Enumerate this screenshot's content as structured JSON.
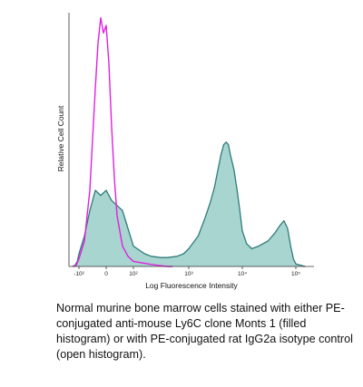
{
  "chart_data": {
    "type": "area",
    "xlabel": "Log Fluorescence Intensity",
    "ylabel": "Relative Cell Count",
    "x_scale": "biexponential",
    "xticks": [
      {
        "value": -100,
        "label": "-10²"
      },
      {
        "value": 0,
        "label": "0"
      },
      {
        "value": 100,
        "label": "10²"
      },
      {
        "value": 1000,
        "label": "10³"
      },
      {
        "value": 10000,
        "label": "10⁴"
      },
      {
        "value": 100000,
        "label": "10⁵"
      }
    ],
    "ylim": [
      0,
      100
    ],
    "grid": false,
    "legend": "none",
    "series": [
      {
        "style": "filled",
        "color": "#2e7b7b",
        "fill": "#a8d5cf",
        "x": [
          -215,
          -170,
          -130,
          -100,
          -80,
          -60,
          -40,
          -20,
          0,
          20,
          40,
          60,
          80,
          100,
          150,
          200,
          300,
          400,
          600,
          800,
          1000,
          1500,
          2000,
          2500,
          3000,
          3500,
          4000,
          4500,
          5000,
          5500,
          6000,
          7000,
          8000,
          9000,
          10000,
          12000,
          15000,
          20000,
          30000,
          40000,
          50000,
          60000,
          70000,
          80000,
          90000,
          100000,
          150000
        ],
        "y": [
          0,
          0.5,
          2,
          5,
          12,
          22,
          30,
          28,
          30,
          26,
          24,
          22,
          15,
          8,
          5,
          4,
          3.5,
          3.5,
          4,
          5,
          7,
          12,
          19,
          25,
          31,
          38,
          44,
          48,
          49,
          48,
          44,
          38,
          30,
          22,
          14,
          9,
          7,
          8,
          10,
          13,
          16,
          18,
          15,
          8,
          3,
          1,
          0
        ]
      },
      {
        "style": "open",
        "color": "#e020e0",
        "x": [
          -215,
          -150,
          -100,
          -80,
          -60,
          -40,
          -30,
          -20,
          -10,
          0,
          10,
          20,
          30,
          40,
          60,
          80,
          100,
          150,
          200,
          300,
          400,
          500
        ],
        "y": [
          0,
          0.5,
          3,
          10,
          30,
          70,
          88,
          98,
          92,
          95,
          80,
          55,
          35,
          20,
          8,
          4,
          2,
          1.2,
          0.8,
          0.3,
          0,
          0
        ]
      }
    ]
  },
  "caption": "Normal murine bone marrow cells stained with either PE-conjugated anti-mouse Ly6C clone Monts 1 (filled histogram) or with PE-conjugated rat IgG2a isotype control (open histogram)."
}
